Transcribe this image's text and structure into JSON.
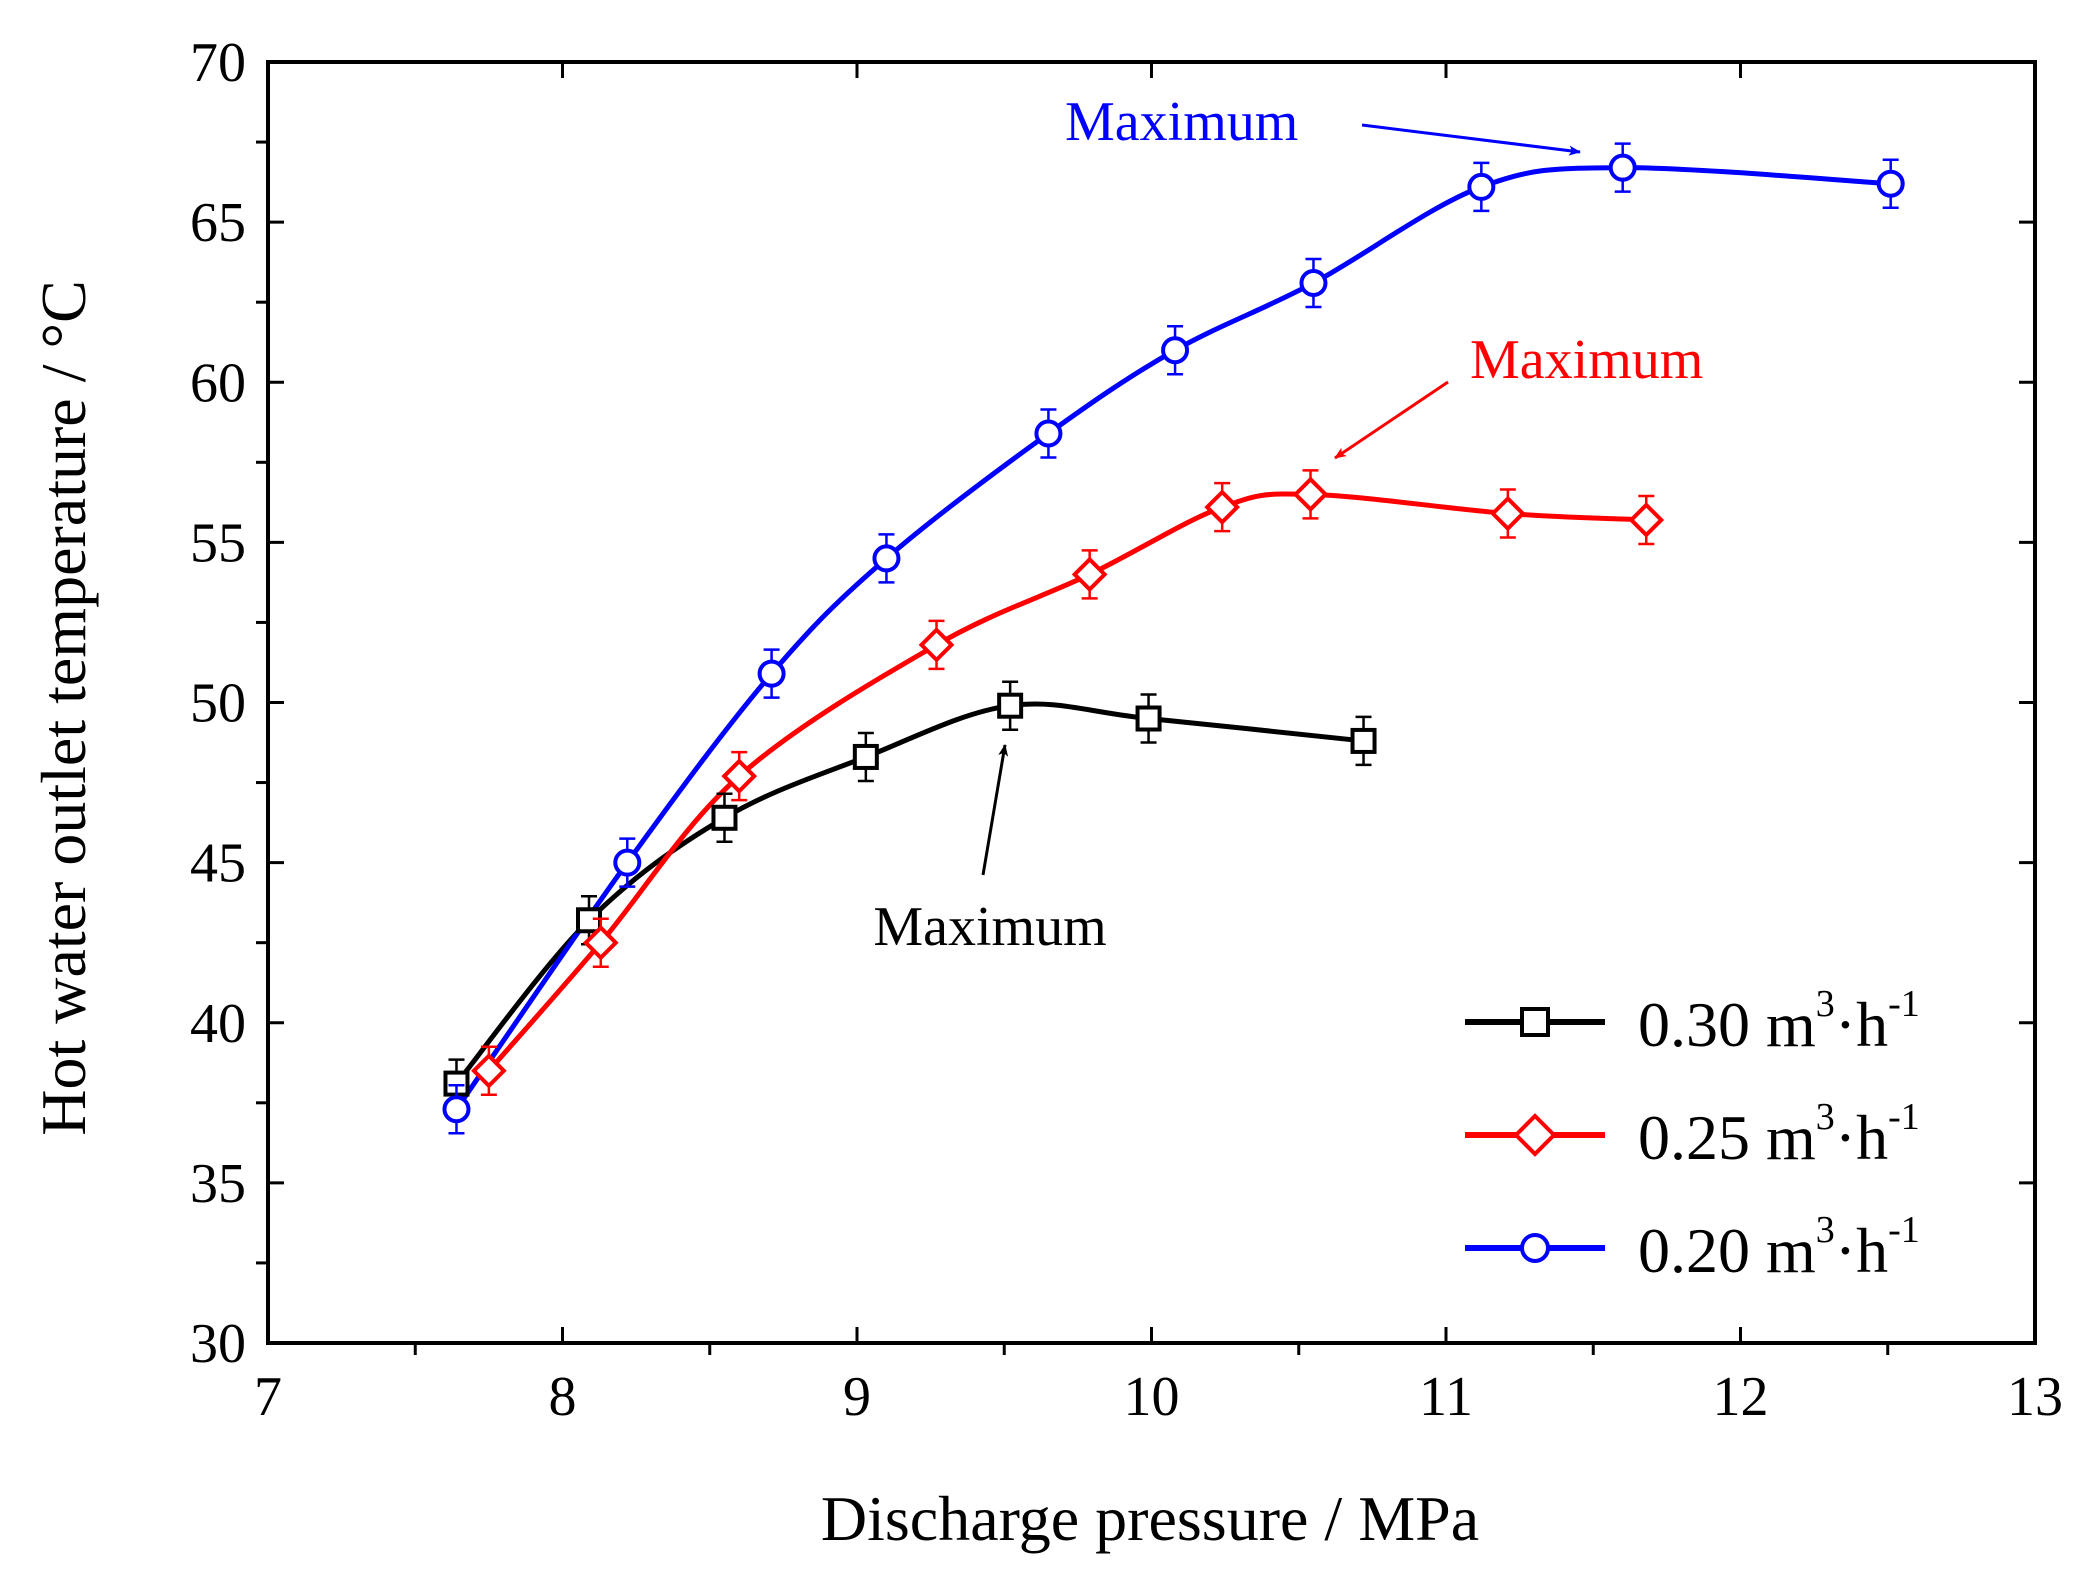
{
  "chart_data": {
    "type": "line",
    "title": "",
    "xlabel": "Discharge pressure  / MPa",
    "ylabel": "Hot water outlet temperature  / °C",
    "xlim": [
      7,
      13
    ],
    "ylim": [
      30,
      70
    ],
    "xticks": [
      7,
      8,
      9,
      10,
      11,
      12,
      13
    ],
    "yticks": [
      30,
      35,
      40,
      45,
      50,
      55,
      60,
      65,
      70
    ],
    "grid": false,
    "legend_position": "bottom-right",
    "series": [
      {
        "name": "0.30 m3·h-1",
        "legend_main": "0.30 m",
        "legend_sup1": "3",
        "legend_mid": "·h",
        "legend_sup2": "-1",
        "color": "#000000",
        "marker": "square",
        "x": [
          7.64,
          8.09,
          8.55,
          9.03,
          9.52,
          9.99,
          10.72
        ],
        "y": [
          38.1,
          43.2,
          46.4,
          48.3,
          49.9,
          49.5,
          48.8
        ]
      },
      {
        "name": "0.25 m3·h-1",
        "legend_main": "0.25 m",
        "legend_sup1": "3",
        "legend_mid": "·h",
        "legend_sup2": "-1",
        "color": "#ff0000",
        "marker": "diamond",
        "x": [
          7.75,
          8.13,
          8.6,
          9.27,
          9.79,
          10.24,
          10.54,
          11.21,
          11.68
        ],
        "y": [
          38.5,
          42.5,
          47.7,
          51.8,
          54.0,
          56.1,
          56.5,
          55.9,
          55.7
        ]
      },
      {
        "name": "0.20 m3·h-1",
        "legend_main": "0.20 m",
        "legend_sup1": "3",
        "legend_mid": "·h",
        "legend_sup2": "-1",
        "color": "#0000ff",
        "marker": "circle",
        "x": [
          7.64,
          8.22,
          8.71,
          9.1,
          9.65,
          10.08,
          10.55,
          11.12,
          11.6,
          12.51
        ],
        "y": [
          37.3,
          45.0,
          50.9,
          54.5,
          58.4,
          61.0,
          63.1,
          66.1,
          66.7,
          66.2
        ]
      }
    ],
    "annotations": [
      {
        "text": "Maximum",
        "color": "#0000ff",
        "arrow_to": [
          11.5,
          66.6
        ]
      },
      {
        "text": "Maximum",
        "color": "#ff0000",
        "arrow_to": [
          10.55,
          57.0
        ]
      },
      {
        "text": "Maximum",
        "color": "#000000",
        "arrow_to": [
          9.52,
          49.0
        ]
      }
    ]
  }
}
